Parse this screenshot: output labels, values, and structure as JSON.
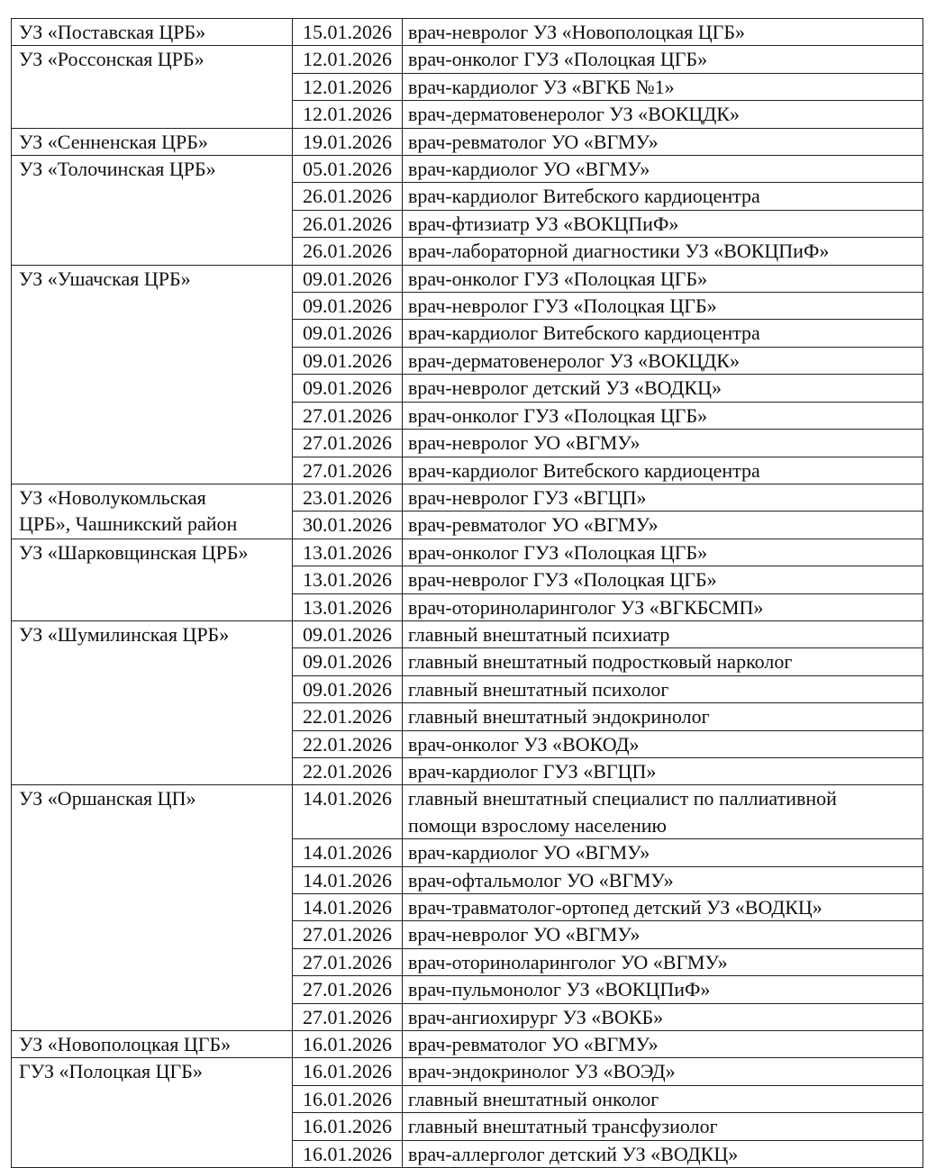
{
  "table": {
    "groups": [
      {
        "org": [
          "УЗ «Поставская ЦРБ»"
        ],
        "entries": [
          {
            "date": "15.01.2026",
            "specialist": [
              "врач-невролог УЗ «Новополоцкая ЦГБ»"
            ]
          }
        ]
      },
      {
        "org": [
          "УЗ «Россонская ЦРБ»"
        ],
        "entries": [
          {
            "date": "12.01.2026",
            "specialist": [
              "врач-онколог ГУЗ «Полоцкая ЦГБ»"
            ]
          },
          {
            "date": "12.01.2026",
            "specialist": [
              "врач-кардиолог УЗ «ВГКБ №1»"
            ]
          },
          {
            "date": "12.01.2026",
            "specialist": [
              "врач-дерматовенеролог УЗ «ВОКЦДК»"
            ]
          }
        ]
      },
      {
        "org": [
          "УЗ «Сенненская ЦРБ»"
        ],
        "entries": [
          {
            "date": "19.01.2026",
            "specialist": [
              "врач-ревматолог УО «ВГМУ»"
            ]
          }
        ]
      },
      {
        "org": [
          "УЗ «Толочинская ЦРБ»"
        ],
        "entries": [
          {
            "date": "05.01.2026",
            "specialist": [
              "врач-кардиолог УО «ВГМУ»"
            ]
          },
          {
            "date": "26.01.2026",
            "specialist": [
              "врач-кардиолог Витебского кардиоцентра"
            ]
          },
          {
            "date": "26.01.2026",
            "specialist": [
              "врач-фтизиатр УЗ «ВОКЦПиФ»"
            ]
          },
          {
            "date": "26.01.2026",
            "specialist": [
              "врач-лабораторной диагностики УЗ «ВОКЦПиФ»"
            ]
          }
        ]
      },
      {
        "org": [
          "УЗ «Ушачская ЦРБ»"
        ],
        "entries": [
          {
            "date": "09.01.2026",
            "specialist": [
              "врач-онколог ГУЗ «Полоцкая ЦГБ»"
            ]
          },
          {
            "date": "09.01.2026",
            "specialist": [
              "врач-невролог ГУЗ «Полоцкая ЦГБ»"
            ]
          },
          {
            "date": "09.01.2026",
            "specialist": [
              "врач-кардиолог Витебского кардиоцентра"
            ]
          },
          {
            "date": "09.01.2026",
            "specialist": [
              "врач-дерматовенеролог УЗ «ВОКЦДК»"
            ]
          },
          {
            "date": "09.01.2026",
            "specialist": [
              "врач-невролог детский УЗ «ВОДКЦ»"
            ]
          },
          {
            "date": "27.01.2026",
            "specialist": [
              "врач-онколог ГУЗ «Полоцкая ЦГБ»"
            ]
          },
          {
            "date": "27.01.2026",
            "specialist": [
              "врач-невролог УО «ВГМУ»"
            ]
          },
          {
            "date": "27.01.2026",
            "specialist": [
              "врач-кардиолог Витебского кардиоцентра"
            ]
          }
        ]
      },
      {
        "org": [
          "УЗ «Новолукомльская",
          "ЦРБ», Чашникский район"
        ],
        "entries": [
          {
            "date": "23.01.2026",
            "specialist": [
              "врач-невролог ГУЗ «ВГЦП»"
            ]
          },
          {
            "date": "30.01.2026",
            "specialist": [
              "врач-ревматолог УО «ВГМУ»"
            ]
          }
        ]
      },
      {
        "org": [
          "УЗ «Шарковщинская ЦРБ»"
        ],
        "entries": [
          {
            "date": "13.01.2026",
            "specialist": [
              "врач-онколог ГУЗ «Полоцкая ЦГБ»"
            ]
          },
          {
            "date": "13.01.2026",
            "specialist": [
              "врач-невролог ГУЗ «Полоцкая ЦГБ»"
            ]
          },
          {
            "date": "13.01.2026",
            "specialist": [
              "врач-оториноларинголог УЗ «ВГКБСМП»"
            ]
          }
        ]
      },
      {
        "org": [
          "УЗ «Шумилинская ЦРБ»"
        ],
        "entries": [
          {
            "date": "09.01.2026",
            "specialist": [
              "главный внештатный психиатр"
            ]
          },
          {
            "date": "09.01.2026",
            "specialist": [
              "главный внештатный подростковый нарколог"
            ]
          },
          {
            "date": "09.01.2026",
            "specialist": [
              "главный внештатный психолог"
            ]
          },
          {
            "date": "22.01.2026",
            "specialist": [
              "главный внештатный эндокринолог"
            ]
          },
          {
            "date": "22.01.2026",
            "specialist": [
              "врач-онколог УЗ «ВОКОД»"
            ]
          },
          {
            "date": "22.01.2026",
            "specialist": [
              "врач-кардиолог ГУЗ «ВГЦП»"
            ]
          }
        ]
      },
      {
        "org": [
          "УЗ «Оршанская ЦП»"
        ],
        "entries": [
          {
            "date": "14.01.2026",
            "specialist": [
              "главный внештатный специалист по паллиативной",
              "помощи взрослому населению"
            ]
          },
          {
            "date": "14.01.2026",
            "specialist": [
              "врач-кардиолог УО «ВГМУ»"
            ]
          },
          {
            "date": "14.01.2026",
            "specialist": [
              "врач-офтальмолог УО «ВГМУ»"
            ]
          },
          {
            "date": "14.01.2026",
            "specialist": [
              "врач-травматолог-ортопед детский УЗ «ВОДКЦ»"
            ]
          },
          {
            "date": "27.01.2026",
            "specialist": [
              "врач-невролог УО «ВГМУ»"
            ]
          },
          {
            "date": "27.01.2026",
            "specialist": [
              "врач-оториноларинголог УО «ВГМУ»"
            ]
          },
          {
            "date": "27.01.2026",
            "specialist": [
              "врач-пульмонолог УЗ «ВОКЦПиФ»"
            ]
          },
          {
            "date": "27.01.2026",
            "specialist": [
              "врач-ангиохирург УЗ «ВОКБ»"
            ]
          }
        ]
      },
      {
        "org": [
          "УЗ «Новополоцкая ЦГБ»"
        ],
        "entries": [
          {
            "date": "16.01.2026",
            "specialist": [
              "врач-ревматолог УО «ВГМУ»"
            ]
          }
        ]
      },
      {
        "org": [
          "ГУЗ «Полоцкая ЦГБ»"
        ],
        "entries": [
          {
            "date": "16.01.2026",
            "specialist": [
              "врач-эндокринолог УЗ «ВОЭД»"
            ]
          },
          {
            "date": "16.01.2026",
            "specialist": [
              "главный внештатный онколог"
            ]
          },
          {
            "date": "16.01.2026",
            "specialist": [
              "главный внештатный трансфузиолог"
            ]
          },
          {
            "date": "16.01.2026",
            "specialist": [
              "врач-аллерголог детский УЗ «ВОДКЦ»"
            ]
          }
        ]
      }
    ]
  }
}
